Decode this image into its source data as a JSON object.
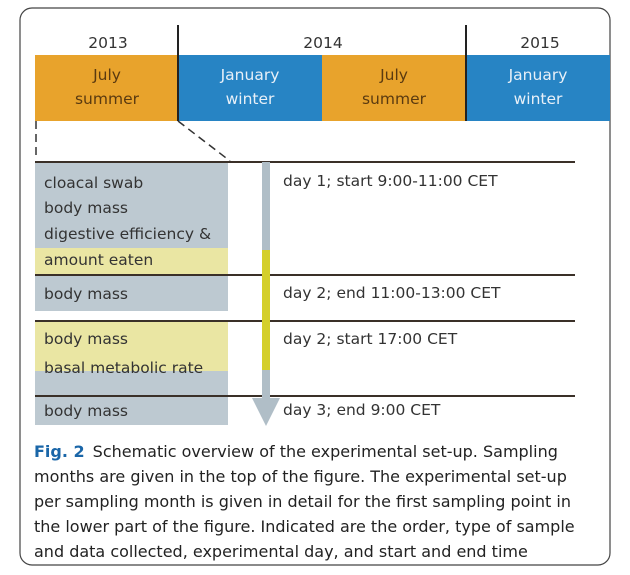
{
  "timeline": {
    "years": [
      "2013",
      "2014",
      "2015"
    ],
    "periods": [
      {
        "month": "July",
        "season": "summer"
      },
      {
        "month": "January",
        "season": "winter"
      },
      {
        "month": "July",
        "season": "summer"
      },
      {
        "month": "January",
        "season": "winter"
      }
    ]
  },
  "samples": [
    "cloacal swab",
    "body mass",
    "digestive efficiency &",
    "amount eaten",
    "body mass",
    "body mass",
    "basal metabolic rate",
    "body mass"
  ],
  "days": [
    "day 1; start 9:00-11:00 CET",
    "day 2;  end 11:00-13:00 CET",
    "day 2; start 17:00 CET",
    "day 3; end 9:00 CET"
  ],
  "caption": {
    "label": "Fig. 2",
    "lines": [
      "Schematic overview of the experimental set-up. Sampling",
      "months are given in the top of the figure. The experimental set-up",
      "per sampling month is given in detail for the first sampling point in",
      "the lower part of the figure. Indicated are the order, type of sample",
      "and data collected, experimental day, and start and end time"
    ]
  }
}
